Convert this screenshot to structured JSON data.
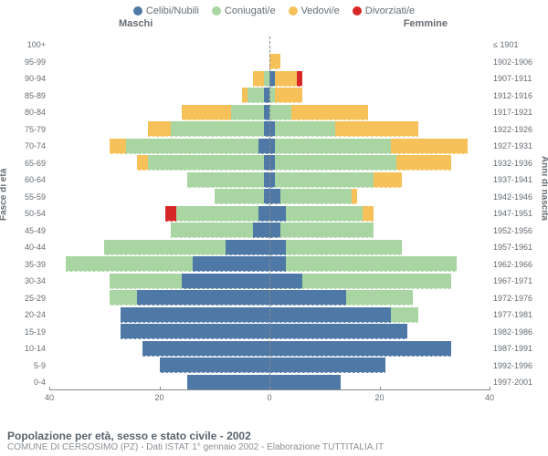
{
  "legend": {
    "items": [
      {
        "label": "Celibi/Nubili",
        "color": "#4e79a7"
      },
      {
        "label": "Coniugati/e",
        "color": "#a8d5a2"
      },
      {
        "label": "Vedovi/e",
        "color": "#f7c15a"
      },
      {
        "label": "Divorziati/e",
        "color": "#d62728"
      }
    ]
  },
  "header": {
    "male": "Maschi",
    "female": "Femmine"
  },
  "axes": {
    "left_title": "Fasce di età",
    "right_title": "Anni di nascita",
    "x_max": 40,
    "x_ticks": [
      40,
      20,
      0,
      20,
      40
    ]
  },
  "colors": {
    "single": "#4e79a7",
    "married": "#a8d5a2",
    "widowed": "#f7c15a",
    "divorced": "#d62728",
    "background": "#ffffff",
    "text": "#666d73",
    "axis": "#888888",
    "center_dash": "#888888"
  },
  "fonts": {
    "base": 10,
    "legend": 11,
    "title": 12
  },
  "caption": {
    "title": "Popolazione per età, sesso e stato civile - 2002",
    "subtitle": "COMUNE DI CERSOSIMO (PZ) - Dati ISTAT 1° gennaio 2002 - Elaborazione TUTTITALIA.IT"
  },
  "rows": [
    {
      "age": "100+",
      "birth": "≤ 1901",
      "m": {
        "s": 0,
        "c": 0,
        "w": 0,
        "d": 0
      },
      "f": {
        "s": 0,
        "c": 0,
        "w": 0,
        "d": 0
      }
    },
    {
      "age": "95-99",
      "birth": "1902-1906",
      "m": {
        "s": 0,
        "c": 0,
        "w": 0,
        "d": 0
      },
      "f": {
        "s": 0,
        "c": 0,
        "w": 2,
        "d": 0
      }
    },
    {
      "age": "90-94",
      "birth": "1907-1911",
      "m": {
        "s": 0,
        "c": 1,
        "w": 2,
        "d": 0
      },
      "f": {
        "s": 1,
        "c": 0,
        "w": 4,
        "d": 1
      }
    },
    {
      "age": "85-89",
      "birth": "1912-1916",
      "m": {
        "s": 1,
        "c": 3,
        "w": 1,
        "d": 0
      },
      "f": {
        "s": 0,
        "c": 1,
        "w": 5,
        "d": 0
      }
    },
    {
      "age": "80-84",
      "birth": "1917-1921",
      "m": {
        "s": 1,
        "c": 6,
        "w": 9,
        "d": 0
      },
      "f": {
        "s": 0,
        "c": 4,
        "w": 14,
        "d": 0
      }
    },
    {
      "age": "75-79",
      "birth": "1922-1926",
      "m": {
        "s": 1,
        "c": 17,
        "w": 4,
        "d": 0
      },
      "f": {
        "s": 1,
        "c": 11,
        "w": 15,
        "d": 0
      }
    },
    {
      "age": "70-74",
      "birth": "1927-1931",
      "m": {
        "s": 2,
        "c": 24,
        "w": 3,
        "d": 0
      },
      "f": {
        "s": 1,
        "c": 21,
        "w": 14,
        "d": 0
      }
    },
    {
      "age": "65-69",
      "birth": "1932-1936",
      "m": {
        "s": 1,
        "c": 21,
        "w": 2,
        "d": 0
      },
      "f": {
        "s": 1,
        "c": 22,
        "w": 10,
        "d": 0
      }
    },
    {
      "age": "60-64",
      "birth": "1937-1941",
      "m": {
        "s": 1,
        "c": 14,
        "w": 0,
        "d": 0
      },
      "f": {
        "s": 1,
        "c": 18,
        "w": 5,
        "d": 0
      }
    },
    {
      "age": "55-59",
      "birth": "1942-1946",
      "m": {
        "s": 1,
        "c": 9,
        "w": 0,
        "d": 0
      },
      "f": {
        "s": 2,
        "c": 13,
        "w": 1,
        "d": 0
      }
    },
    {
      "age": "50-54",
      "birth": "1947-1951",
      "m": {
        "s": 2,
        "c": 15,
        "w": 0,
        "d": 2
      },
      "f": {
        "s": 3,
        "c": 14,
        "w": 2,
        "d": 0
      }
    },
    {
      "age": "45-49",
      "birth": "1952-1956",
      "m": {
        "s": 3,
        "c": 15,
        "w": 0,
        "d": 0
      },
      "f": {
        "s": 2,
        "c": 17,
        "w": 0,
        "d": 0
      }
    },
    {
      "age": "40-44",
      "birth": "1957-1961",
      "m": {
        "s": 8,
        "c": 22,
        "w": 0,
        "d": 0
      },
      "f": {
        "s": 3,
        "c": 21,
        "w": 0,
        "d": 0
      }
    },
    {
      "age": "35-39",
      "birth": "1962-1966",
      "m": {
        "s": 14,
        "c": 23,
        "w": 0,
        "d": 0
      },
      "f": {
        "s": 3,
        "c": 31,
        "w": 0,
        "d": 0
      }
    },
    {
      "age": "30-34",
      "birth": "1967-1971",
      "m": {
        "s": 16,
        "c": 13,
        "w": 0,
        "d": 0
      },
      "f": {
        "s": 6,
        "c": 27,
        "w": 0,
        "d": 0
      }
    },
    {
      "age": "25-29",
      "birth": "1972-1976",
      "m": {
        "s": 24,
        "c": 5,
        "w": 0,
        "d": 0
      },
      "f": {
        "s": 14,
        "c": 12,
        "w": 0,
        "d": 0
      }
    },
    {
      "age": "20-24",
      "birth": "1977-1981",
      "m": {
        "s": 27,
        "c": 0,
        "w": 0,
        "d": 0
      },
      "f": {
        "s": 22,
        "c": 5,
        "w": 0,
        "d": 0
      }
    },
    {
      "age": "15-19",
      "birth": "1982-1986",
      "m": {
        "s": 27,
        "c": 0,
        "w": 0,
        "d": 0
      },
      "f": {
        "s": 25,
        "c": 0,
        "w": 0,
        "d": 0
      }
    },
    {
      "age": "10-14",
      "birth": "1987-1991",
      "m": {
        "s": 23,
        "c": 0,
        "w": 0,
        "d": 0
      },
      "f": {
        "s": 33,
        "c": 0,
        "w": 0,
        "d": 0
      }
    },
    {
      "age": "5-9",
      "birth": "1992-1996",
      "m": {
        "s": 20,
        "c": 0,
        "w": 0,
        "d": 0
      },
      "f": {
        "s": 21,
        "c": 0,
        "w": 0,
        "d": 0
      }
    },
    {
      "age": "0-4",
      "birth": "1997-2001",
      "m": {
        "s": 15,
        "c": 0,
        "w": 0,
        "d": 0
      },
      "f": {
        "s": 13,
        "c": 0,
        "w": 0,
        "d": 0
      }
    }
  ]
}
